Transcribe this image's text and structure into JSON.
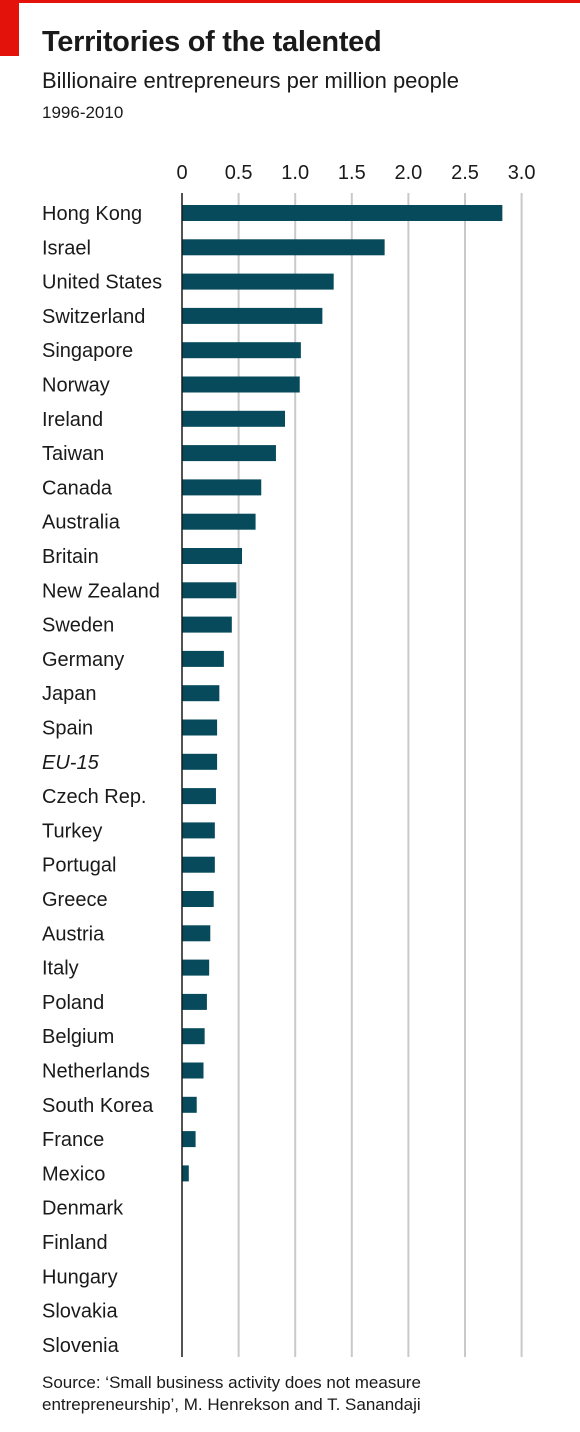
{
  "chart_data": {
    "type": "bar",
    "orientation": "horizontal",
    "title": "Territories of the talented",
    "subtitle": "Billionaire entrepreneurs per million people",
    "period": "1996-2010",
    "x_ticks": [
      "0",
      "0.5",
      "1.0",
      "1.5",
      "2.0",
      "2.5",
      "3.0"
    ],
    "xlim": [
      0,
      3.0
    ],
    "grid": "vertical",
    "categories": [
      "Hong Kong",
      "Israel",
      "United States",
      "Switzerland",
      "Singapore",
      "Norway",
      "Ireland",
      "Taiwan",
      "Canada",
      "Australia",
      "Britain",
      "New Zealand",
      "Sweden",
      "Germany",
      "Japan",
      "Spain",
      "EU-15",
      "Czech Rep.",
      "Turkey",
      "Portugal",
      "Greece",
      "Austria",
      "Italy",
      "Poland",
      "Belgium",
      "Netherlands",
      "South Korea",
      "France",
      "Mexico",
      "Denmark",
      "Finland",
      "Hungary",
      "Slovakia",
      "Slovenia"
    ],
    "italic_categories": [
      "EU-15"
    ],
    "values": [
      2.83,
      1.79,
      1.34,
      1.24,
      1.05,
      1.04,
      0.91,
      0.83,
      0.7,
      0.65,
      0.53,
      0.48,
      0.44,
      0.37,
      0.33,
      0.31,
      0.31,
      0.3,
      0.29,
      0.29,
      0.28,
      0.25,
      0.24,
      0.22,
      0.2,
      0.19,
      0.13,
      0.12,
      0.06,
      0,
      0,
      0,
      0,
      0
    ],
    "bar_color": "#064a5b",
    "grid_color": "#c9c9c9"
  },
  "source": "Source: ‘Small business activity does not measure entrepreneurship’, M. Henrekson and T. Sanandaji"
}
